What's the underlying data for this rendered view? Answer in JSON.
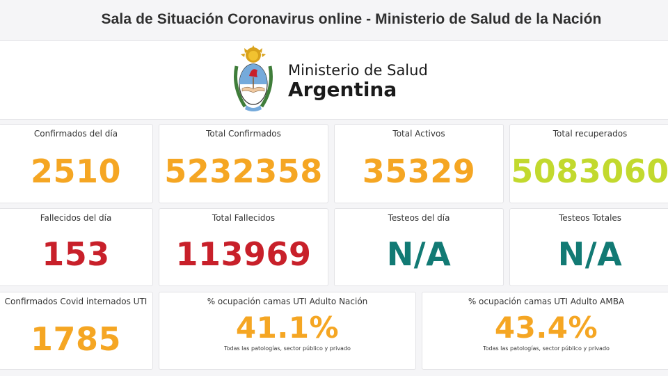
{
  "header": {
    "title": "Sala de Situación Coronavirus online - Ministerio de Salud de la Nación"
  },
  "logo": {
    "line1": "Ministerio de Salud",
    "line2": "Argentina",
    "emblem_icon": "coat-of-arms-icon"
  },
  "colors": {
    "orange": "#f5a623",
    "lime": "#c2d92e",
    "red": "#c8202a",
    "teal": "#127a74"
  },
  "stats": {
    "confirmados_dia": {
      "label": "Confirmados del día",
      "value": "2510"
    },
    "total_confirmados": {
      "label": "Total Confirmados",
      "value": "5232358"
    },
    "total_activos": {
      "label": "Total Activos",
      "value": "35329"
    },
    "total_recuperados": {
      "label": "Total recuperados",
      "value": "5083060"
    },
    "fallecidos_dia": {
      "label": "Fallecidos del día",
      "value": "153"
    },
    "total_fallecidos": {
      "label": "Total Fallecidos",
      "value": "113969"
    },
    "testeos_dia": {
      "label": "Testeos del día",
      "value": "N/A"
    },
    "testeos_totales": {
      "label": "Testeos Totales",
      "value": "N/A"
    },
    "internados_uti": {
      "label": "Confirmados Covid internados UTI",
      "value": "1785"
    },
    "ocupacion_nacion": {
      "label": "% ocupación camas UTI Adulto Nación",
      "value": "41.1%",
      "note": "Todas las patologías, sector público y privado"
    },
    "ocupacion_amba": {
      "label": "% ocupación camas UTI Adulto AMBA",
      "value": "43.4%",
      "note": "Todas las patologías, sector público y privado"
    }
  }
}
